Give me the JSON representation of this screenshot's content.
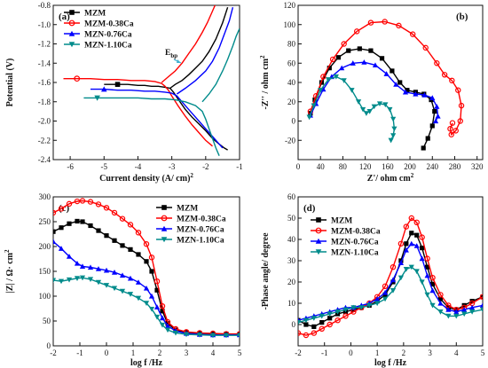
{
  "chart_data": [
    {
      "panel_label": "(a)",
      "type": "line",
      "xlabel": "Current density (A/ cm)",
      "xlabel_sup": "2",
      "ylabel": "Potential (V)",
      "xlim": [
        -6.5,
        -1.0
      ],
      "ylim": [
        -2.4,
        -0.8
      ],
      "xticks": [
        -6,
        -5,
        -4,
        -3,
        -2,
        -1
      ],
      "xtick_labels": [
        "-6",
        "-5",
        "-4",
        "-3",
        "-2",
        "-1"
      ],
      "yticks": [
        -2.4,
        -2.2,
        -2.0,
        -1.8,
        -1.6,
        -1.4,
        -1.2,
        -1.0,
        -0.8
      ],
      "ytick_labels": [
        "-2.4",
        "-2.2",
        "-2.0",
        "-1.8",
        "-1.6",
        "-1.4",
        "-1.2",
        "-1.0",
        "-0.8"
      ],
      "legend_position": "top-left",
      "annotation": {
        "text": "E",
        "sub": "bp",
        "x": -2.6,
        "y": -1.42,
        "arrow_to": [
          -2.1,
          -1.44
        ]
      },
      "series": [
        {
          "name": "MZM",
          "color": "#000000",
          "marker": "square",
          "x": [
            -5.0,
            -4.6,
            -4.3,
            -4.0,
            -3.8,
            -3.6,
            -3.4,
            -3.2,
            -3.05,
            -3.0,
            -2.95,
            -2.8,
            -2.6,
            -2.4,
            -2.2,
            -2.0,
            -1.8,
            -1.6,
            -1.45,
            -1.35
          ],
          "y": [
            -1.62,
            -1.62,
            -1.62,
            -1.63,
            -1.63,
            -1.64,
            -1.64,
            -1.65,
            -1.66,
            -1.68,
            -1.7,
            -1.78,
            -1.88,
            -1.96,
            -2.03,
            -2.1,
            -2.18,
            -2.24,
            -2.28,
            -2.3
          ],
          "y2x": [
            -3.05,
            -2.9,
            -2.7,
            -2.5,
            -2.3,
            -2.1,
            -1.9,
            -1.7,
            -1.5,
            -1.35
          ],
          "y2": [
            -1.66,
            -1.62,
            -1.58,
            -1.52,
            -1.45,
            -1.38,
            -1.28,
            -1.15,
            -0.98,
            -0.82
          ]
        },
        {
          "name": "MZM-0.38Ca",
          "color": "#ff0000",
          "marker": "circle",
          "x": [
            -6.2,
            -5.8,
            -5.4,
            -5.0,
            -4.6,
            -4.2,
            -3.8,
            -3.5,
            -3.3,
            -3.2,
            -3.1,
            -3.0,
            -2.8,
            -2.6,
            -2.4,
            -2.2,
            -2.0,
            -1.8
          ],
          "y": [
            -1.56,
            -1.56,
            -1.56,
            -1.57,
            -1.57,
            -1.58,
            -1.58,
            -1.59,
            -1.61,
            -1.64,
            -1.68,
            -1.74,
            -1.85,
            -1.95,
            -2.04,
            -2.12,
            -2.2,
            -2.26
          ],
          "y2x": [
            -3.3,
            -3.1,
            -2.9,
            -2.7,
            -2.5,
            -2.3,
            -2.1,
            -1.95,
            -1.8,
            -1.7
          ],
          "y2": [
            -1.6,
            -1.54,
            -1.48,
            -1.4,
            -1.3,
            -1.2,
            -1.08,
            -0.98,
            -0.86,
            -0.78
          ]
        },
        {
          "name": "MZN-0.76Ca",
          "color": "#0000ff",
          "marker": "triangle-up",
          "x": [
            -5.4,
            -5.0,
            -4.6,
            -4.2,
            -3.8,
            -3.5,
            -3.2,
            -3.0,
            -2.85,
            -2.7,
            -2.55,
            -2.4,
            -2.2,
            -2.0,
            -1.8,
            -1.6,
            -1.5
          ],
          "y": [
            -1.67,
            -1.67,
            -1.68,
            -1.68,
            -1.69,
            -1.69,
            -1.7,
            -1.71,
            -1.74,
            -1.8,
            -1.86,
            -1.92,
            -2.0,
            -2.08,
            -2.16,
            -2.24,
            -2.28
          ],
          "y2x": [
            -2.85,
            -2.6,
            -2.3,
            -2.0,
            -1.8,
            -1.6,
            -1.45,
            -1.3,
            -1.2
          ],
          "y2": [
            -1.72,
            -1.66,
            -1.58,
            -1.48,
            -1.38,
            -1.24,
            -1.1,
            -0.96,
            -0.82
          ]
        },
        {
          "name": "MZN-1.10Ca",
          "color": "#008b8b",
          "marker": "triangle-down",
          "x": [
            -5.6,
            -5.2,
            -4.8,
            -4.4,
            -4.0,
            -3.6,
            -3.2,
            -2.9,
            -2.6,
            -2.3,
            -2.1,
            -2.0,
            -1.9,
            -1.8,
            -1.7,
            -1.6
          ],
          "y": [
            -1.76,
            -1.76,
            -1.76,
            -1.76,
            -1.76,
            -1.77,
            -1.77,
            -1.78,
            -1.8,
            -1.84,
            -1.9,
            -1.98,
            -2.08,
            -2.18,
            -2.28,
            -2.36
          ],
          "y2x": [
            -2.1,
            -1.9,
            -1.7,
            -1.5,
            -1.35,
            -1.2,
            -1.1,
            -1.0
          ],
          "y2": [
            -1.8,
            -1.72,
            -1.62,
            -1.48,
            -1.36,
            -1.22,
            -1.12,
            -1.04
          ]
        }
      ]
    },
    {
      "panel_label": "(b)",
      "type": "scatter",
      "xlabel": "Z'/ ohm cm",
      "xlabel_sup": "2",
      "ylabel": "-Z'' / ohm cm",
      "ylabel_sup": "2",
      "xlim": [
        0,
        330
      ],
      "ylim": [
        -40,
        120
      ],
      "xticks": [
        0,
        40,
        80,
        120,
        160,
        200,
        240,
        280,
        320
      ],
      "xtick_labels": [
        "0",
        "40",
        "80",
        "120",
        "160",
        "200",
        "240",
        "280",
        "320"
      ],
      "yticks": [
        -20,
        0,
        20,
        40,
        60,
        80,
        100,
        120
      ],
      "ytick_labels": [
        "-20",
        "0",
        "20",
        "40",
        "60",
        "80",
        "100",
        "120"
      ],
      "series": [
        {
          "name": "MZM",
          "color": "#000000",
          "marker": "square",
          "x": [
            22,
            30,
            42,
            56,
            72,
            90,
            110,
            130,
            150,
            168,
            182,
            195,
            210,
            225,
            238,
            244,
            240,
            232,
            224
          ],
          "y": [
            8,
            22,
            40,
            55,
            66,
            73,
            75,
            73,
            65,
            52,
            40,
            32,
            30,
            28,
            22,
            10,
            -5,
            -18,
            -28
          ]
        },
        {
          "name": "MZM-0.38Ca",
          "color": "#ff0000",
          "marker": "circle",
          "x": [
            22,
            32,
            45,
            62,
            82,
            105,
            130,
            155,
            180,
            205,
            228,
            248,
            262,
            275,
            286,
            292,
            290,
            282,
            274,
            272,
            276
          ],
          "y": [
            10,
            26,
            46,
            64,
            80,
            93,
            102,
            103,
            99,
            90,
            76,
            60,
            48,
            42,
            32,
            16,
            0,
            -10,
            -14,
            -8,
            -2
          ]
        },
        {
          "name": "MZN-0.76Ca",
          "color": "#0000ff",
          "marker": "triangle-up",
          "x": [
            22,
            32,
            45,
            60,
            78,
            98,
            118,
            138,
            158,
            175,
            192,
            210,
            226,
            240,
            248,
            250,
            246
          ],
          "y": [
            6,
            18,
            33,
            46,
            55,
            60,
            61,
            58,
            49,
            38,
            30,
            28,
            27,
            24,
            15,
            5,
            0
          ]
        },
        {
          "name": "MZN-1.10Ca",
          "color": "#008b8b",
          "marker": "triangle-down",
          "x": [
            20,
            28,
            40,
            54,
            68,
            82,
            96,
            108,
            116,
            122,
            128,
            136,
            146,
            156,
            164,
            170,
            172,
            170,
            166
          ],
          "y": [
            4,
            16,
            32,
            43,
            46,
            42,
            32,
            20,
            12,
            8,
            10,
            15,
            18,
            17,
            12,
            2,
            -8,
            -15,
            -20
          ]
        }
      ]
    },
    {
      "panel_label": "(c)",
      "type": "scatter",
      "xlabel": "log f  /Hz",
      "ylabel": "|Z| / Ω· cm",
      "ylabel_sup": "2",
      "xlim": [
        -2,
        5
      ],
      "ylim": [
        0,
        300
      ],
      "xticks": [
        -2,
        -1,
        0,
        1,
        2,
        3,
        4,
        5
      ],
      "xtick_labels": [
        "-2",
        "-1",
        "0",
        "1",
        "2",
        "3",
        "4",
        "5"
      ],
      "yticks": [
        0,
        50,
        100,
        150,
        200,
        250,
        300
      ],
      "ytick_labels": [
        "0",
        "50",
        "100",
        "150",
        "200",
        "250",
        "300"
      ],
      "legend_position": "top-right",
      "series": [
        {
          "name": "MZM",
          "color": "#000000",
          "marker": "square",
          "x": [
            -2.0,
            -1.7,
            -1.4,
            -1.1,
            -0.9,
            -0.6,
            -0.3,
            0.0,
            0.3,
            0.6,
            0.9,
            1.2,
            1.5,
            1.7,
            1.9,
            2.1,
            2.3,
            2.6,
            3.0,
            3.5,
            4.0,
            4.5,
            5.0
          ],
          "y": [
            230,
            238,
            246,
            251,
            250,
            242,
            232,
            222,
            212,
            202,
            194,
            184,
            170,
            150,
            112,
            70,
            45,
            32,
            27,
            25,
            24,
            24,
            23
          ]
        },
        {
          "name": "MZM-0.38Ca",
          "color": "#ff0000",
          "marker": "circle",
          "x": [
            -2.0,
            -1.7,
            -1.4,
            -1.1,
            -0.9,
            -0.6,
            -0.3,
            0.0,
            0.3,
            0.6,
            0.9,
            1.2,
            1.5,
            1.7,
            1.9,
            2.1,
            2.3,
            2.6,
            3.0,
            3.5,
            4.0,
            4.5,
            5.0
          ],
          "y": [
            268,
            276,
            286,
            291,
            292,
            290,
            285,
            278,
            268,
            256,
            244,
            228,
            205,
            178,
            130,
            80,
            48,
            34,
            28,
            26,
            25,
            24,
            24
          ]
        },
        {
          "name": "MZN-0.76Ca",
          "color": "#0000ff",
          "marker": "triangle-up",
          "x": [
            -2.0,
            -1.7,
            -1.4,
            -1.1,
            -0.9,
            -0.6,
            -0.3,
            0.0,
            0.3,
            0.6,
            0.9,
            1.2,
            1.5,
            1.7,
            1.9,
            2.1,
            2.3,
            2.6,
            3.0,
            3.5,
            4.0,
            4.5,
            5.0
          ],
          "y": [
            210,
            196,
            180,
            166,
            160,
            158,
            155,
            152,
            148,
            142,
            136,
            128,
            116,
            100,
            78,
            56,
            40,
            30,
            25,
            23,
            22,
            22,
            22
          ]
        },
        {
          "name": "MZN-1.10Ca",
          "color": "#008b8b",
          "marker": "triangle-down",
          "x": [
            -2.0,
            -1.7,
            -1.4,
            -1.1,
            -0.9,
            -0.6,
            -0.3,
            0.0,
            0.3,
            0.6,
            0.9,
            1.2,
            1.5,
            1.7,
            1.9,
            2.1,
            2.3,
            2.6,
            3.0,
            3.5,
            4.0,
            4.5,
            5.0
          ],
          "y": [
            132,
            130,
            133,
            136,
            137,
            134,
            128,
            122,
            116,
            110,
            104,
            96,
            86,
            74,
            58,
            42,
            32,
            26,
            23,
            22,
            21,
            21,
            21
          ]
        }
      ]
    },
    {
      "panel_label": "(d)",
      "type": "scatter",
      "xlabel": "log f  /Hz",
      "ylabel": "-Phase angle/ degree",
      "xlim": [
        -2,
        5
      ],
      "ylim": [
        -10,
        60
      ],
      "xticks": [
        -2,
        -1,
        0,
        1,
        2,
        3,
        4,
        5
      ],
      "xtick_labels": [
        "-2",
        "-1",
        "0",
        "1",
        "2",
        "3",
        "4",
        "5"
      ],
      "yticks": [
        0,
        10,
        20,
        30,
        40,
        50,
        60
      ],
      "ytick_labels": [
        "0",
        "10",
        "20",
        "30",
        "40",
        "50",
        "60"
      ],
      "legend_position": "top-left",
      "series": [
        {
          "name": "MZM",
          "color": "#000000",
          "marker": "square",
          "x": [
            -2.0,
            -1.7,
            -1.4,
            -1.1,
            -0.8,
            -0.5,
            -0.2,
            0.1,
            0.4,
            0.7,
            1.0,
            1.3,
            1.6,
            1.9,
            2.1,
            2.3,
            2.5,
            2.7,
            2.9,
            3.1,
            3.4,
            3.7,
            4.0,
            4.3,
            4.6,
            5.0
          ],
          "y": [
            2,
            0,
            -1,
            1,
            3,
            5,
            6,
            7,
            8,
            9,
            11,
            14,
            20,
            30,
            38,
            43,
            42,
            36,
            27,
            19,
            12,
            8,
            7,
            9,
            11,
            13
          ]
        },
        {
          "name": "MZM-0.38Ca",
          "color": "#ff0000",
          "marker": "circle",
          "x": [
            -2.0,
            -1.7,
            -1.4,
            -1.1,
            -0.8,
            -0.5,
            -0.2,
            0.1,
            0.4,
            0.7,
            1.0,
            1.3,
            1.6,
            1.9,
            2.1,
            2.3,
            2.5,
            2.7,
            2.9,
            3.1,
            3.4,
            3.7,
            4.0,
            4.3,
            4.6,
            5.0
          ],
          "y": [
            -4,
            -5,
            -4,
            -2,
            0,
            2,
            4,
            6,
            8,
            10,
            13,
            18,
            27,
            38,
            46,
            50,
            48,
            41,
            31,
            22,
            14,
            9,
            7,
            8,
            10,
            13
          ]
        },
        {
          "name": "MZN-0.76Ca",
          "color": "#0000ff",
          "marker": "triangle-up",
          "x": [
            -2.0,
            -1.7,
            -1.4,
            -1.1,
            -0.8,
            -0.5,
            -0.2,
            0.1,
            0.4,
            0.7,
            1.0,
            1.3,
            1.6,
            1.9,
            2.1,
            2.3,
            2.5,
            2.7,
            2.9,
            3.1,
            3.4,
            3.7,
            4.0,
            4.3,
            4.6,
            5.0
          ],
          "y": [
            2,
            3,
            4,
            5,
            6,
            7,
            8,
            8,
            9,
            10,
            12,
            15,
            21,
            29,
            35,
            38,
            37,
            31,
            23,
            16,
            10,
            7,
            6,
            7,
            8,
            9
          ]
        },
        {
          "name": "MZN-1.10Ca",
          "color": "#008b8b",
          "marker": "triangle-down",
          "x": [
            -2.0,
            -1.7,
            -1.4,
            -1.1,
            -0.8,
            -0.5,
            -0.2,
            0.1,
            0.4,
            0.7,
            1.0,
            1.3,
            1.6,
            1.9,
            2.1,
            2.3,
            2.5,
            2.7,
            2.9,
            3.1,
            3.4,
            3.7,
            4.0,
            4.3,
            4.6,
            5.0
          ],
          "y": [
            1,
            2,
            3,
            4,
            5,
            6,
            7,
            8,
            8,
            9,
            10,
            12,
            16,
            22,
            26,
            27,
            25,
            20,
            14,
            9,
            6,
            4,
            4,
            5,
            6,
            7
          ]
        }
      ]
    }
  ]
}
